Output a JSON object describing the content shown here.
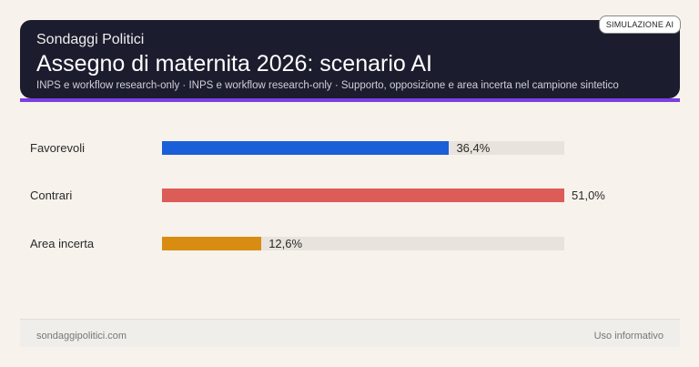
{
  "header": {
    "brand": "Sondaggi Politici",
    "title": "Assegno di maternita 2026: scenario AI",
    "subtitle": "INPS e workflow research-only · INPS e workflow research-only · Supporto, opposizione e area incerta nel campione sintetico",
    "badge": "SIMULAZIONE AI"
  },
  "chart_data": {
    "type": "bar",
    "orientation": "horizontal",
    "categories": [
      "Favorevoli",
      "Contrari",
      "Area incerta"
    ],
    "values": [
      36.4,
      51.0,
      12.6
    ],
    "value_labels": [
      "36,4%",
      "51,0%",
      "12,6%"
    ],
    "colors": [
      "#1a5fd8",
      "#dc5c58",
      "#d98c12"
    ],
    "track_color": "#e8e3dc",
    "xlim": [
      0,
      51
    ]
  },
  "footer": {
    "left": "sondaggipolitici.com",
    "right": "Uso informativo"
  }
}
